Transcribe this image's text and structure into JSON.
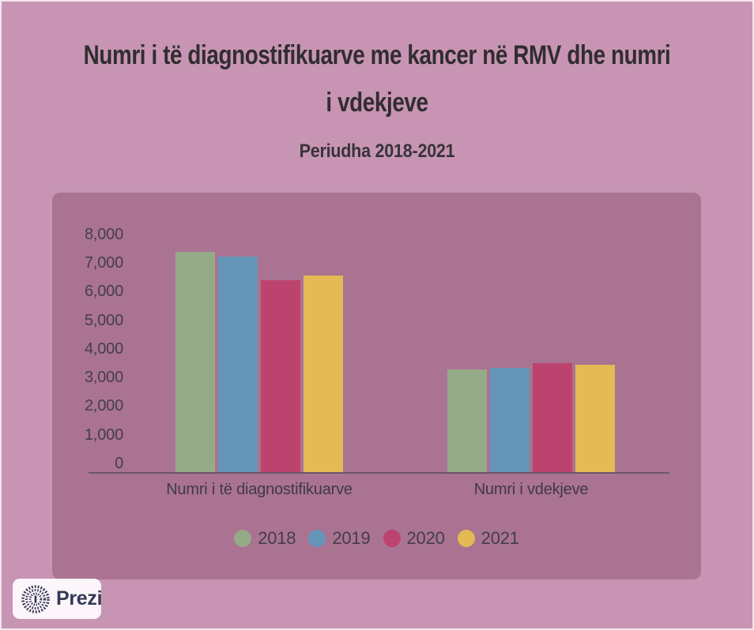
{
  "page": {
    "title_line1": "Numri i të diagnostifikuarve me kancer në RMV dhe numri",
    "title_line2": "i vdekjeve",
    "subtitle": "Periudha 2018-2021"
  },
  "chart_data": {
    "type": "bar",
    "title": "Numri i të diagnostifikuarve me kancer në RMV dhe numri i vdekjeve",
    "subtitle": "Periudha 2018-2021",
    "categories": [
      "Numri i të diagnostifikuarve",
      "Numri i vdekjeve"
    ],
    "series": [
      {
        "name": "2018",
        "color": "#95ab88",
        "values": [
          7300,
          3400
        ]
      },
      {
        "name": "2019",
        "color": "#6596ba",
        "values": [
          7150,
          3450
        ]
      },
      {
        "name": "2020",
        "color": "#bd436f",
        "values": [
          6350,
          3600
        ]
      },
      {
        "name": "2021",
        "color": "#e3ba54",
        "values": [
          6500,
          3550
        ]
      }
    ],
    "xlabel": "",
    "ylabel": "",
    "ylim": [
      0,
      8000
    ],
    "ytick_step": 1000,
    "ytick_labels": [
      "0",
      "1,000",
      "2,000",
      "3,000",
      "4,000",
      "5,000",
      "6,000",
      "7,000",
      "8,000"
    ],
    "grid": false,
    "legend_position": "bottom"
  },
  "branding": {
    "logo_text": "Prezi"
  },
  "colors": {
    "background": "#c795b3",
    "panel": "#aa7392",
    "axis": "#6c5566",
    "title_text": "#312d31"
  }
}
